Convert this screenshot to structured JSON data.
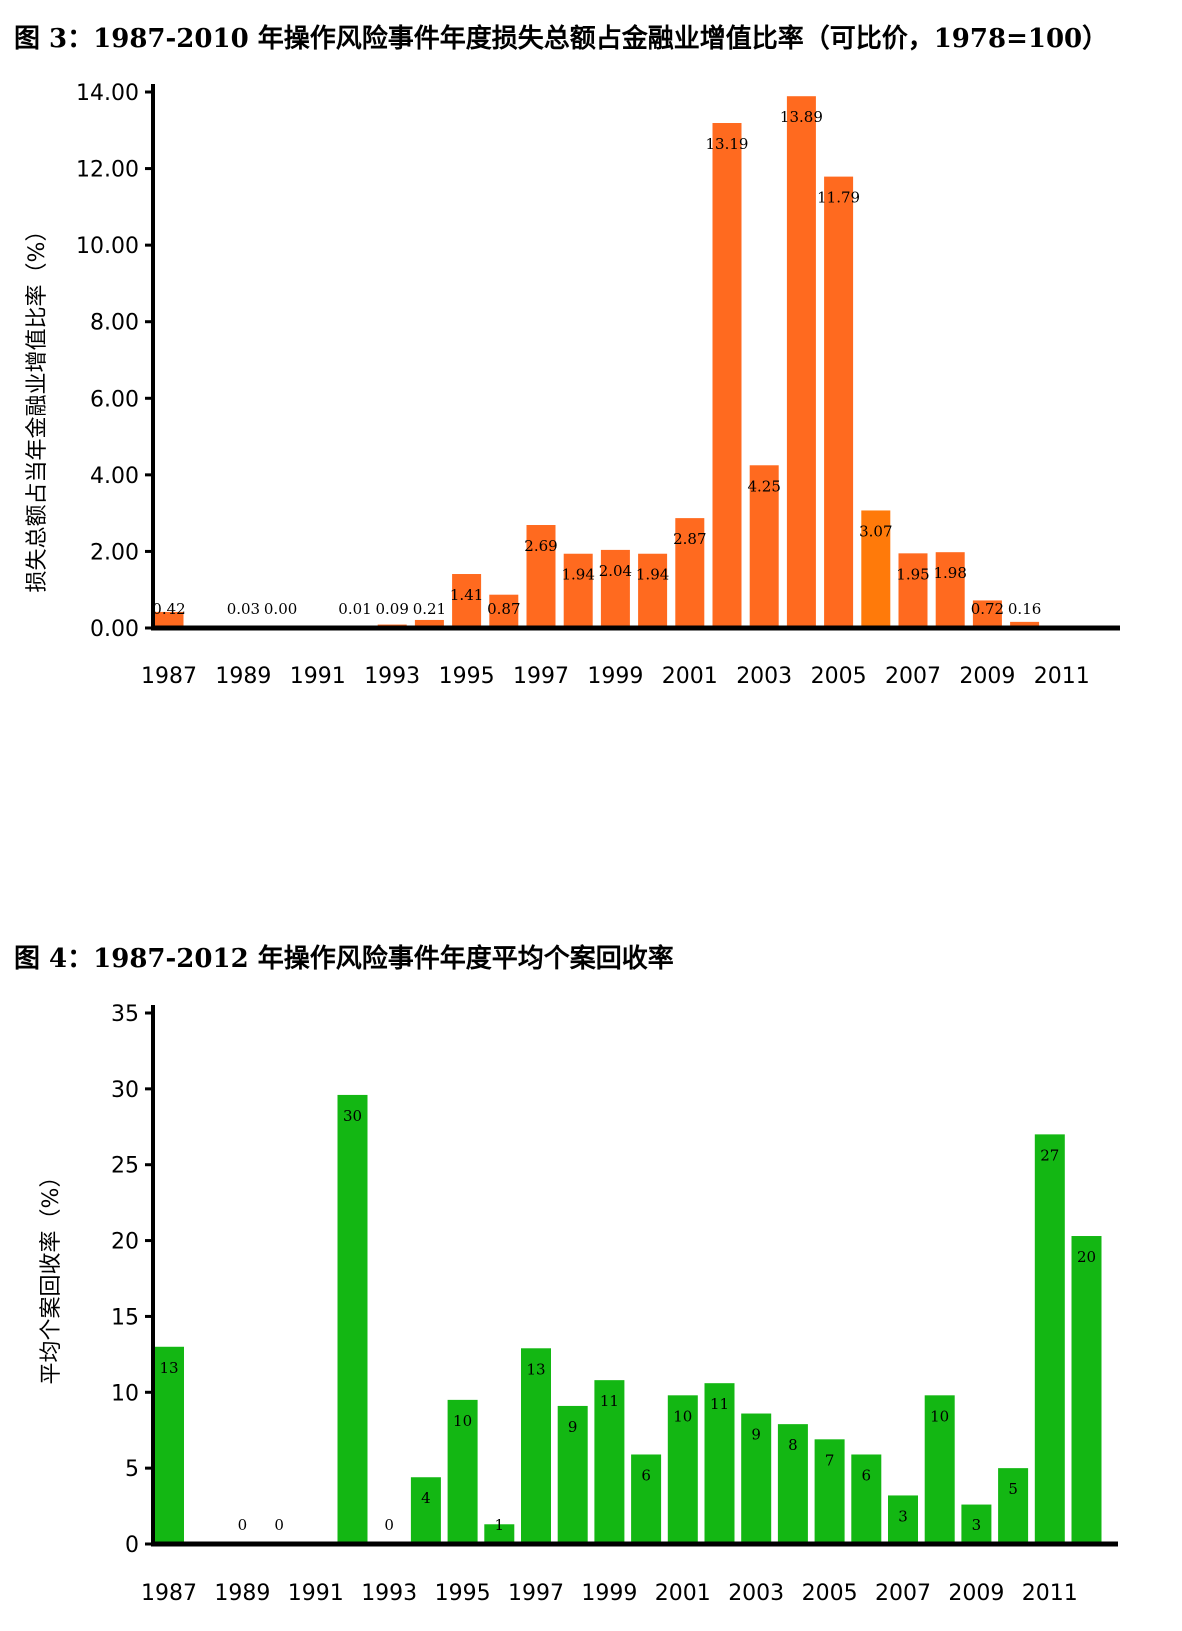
{
  "chart_data": [
    {
      "type": "bar",
      "title": "图 3：1987-2010 年操作风险事件年度损失总额占金融业增值比率（可比价，1978=100）",
      "ylabel": "损失总额占当年金融业增值比率（%）",
      "xlabel": "",
      "ylim": [
        0,
        14
      ],
      "yticks": [
        "0.00",
        "2.00",
        "4.00",
        "6.00",
        "8.00",
        "10.00",
        "12.00",
        "14.00"
      ],
      "ytick_values": [
        0,
        2,
        4,
        6,
        8,
        10,
        12,
        14
      ],
      "x": [
        1987,
        1988,
        1989,
        1990,
        1991,
        1992,
        1993,
        1994,
        1995,
        1996,
        1997,
        1998,
        1999,
        2000,
        2001,
        2002,
        2003,
        2004,
        2005,
        2006,
        2007,
        2008,
        2009,
        2010,
        2011
      ],
      "xtick_labels": [
        "1987",
        "1989",
        "1991",
        "1993",
        "1995",
        "1997",
        "1999",
        "2001",
        "2003",
        "2005",
        "2007",
        "2009",
        "2011"
      ],
      "values": [
        0.42,
        null,
        0.03,
        0.0,
        null,
        0.01,
        0.09,
        0.21,
        1.41,
        0.87,
        2.69,
        1.94,
        2.04,
        1.94,
        2.87,
        13.19,
        4.25,
        13.89,
        11.79,
        3.07,
        1.95,
        1.98,
        0.72,
        0.16,
        null
      ],
      "labels": [
        "0.42",
        "",
        "0.03",
        "0.00",
        "",
        "0.01",
        "0.09",
        "0.21",
        "1.41",
        "0.87",
        "2.69",
        "1.94",
        "2.04",
        "1.94",
        "2.87",
        "13.19",
        "4.25",
        "13.89",
        "11.79",
        "3.07",
        "1.95",
        "1.98",
        "0.72",
        "0.16",
        ""
      ],
      "color": "#FF6A1F",
      "highlight_color": "#FF7A0A",
      "grid": false
    },
    {
      "type": "bar",
      "title": "图 4：1987-2012 年操作风险事件年度平均个案回收率",
      "ylabel": "平均个案回收率（%）",
      "xlabel": "",
      "ylim": [
        0,
        35
      ],
      "yticks": [
        "0",
        "5",
        "10",
        "15",
        "20",
        "25",
        "30",
        "35"
      ],
      "ytick_values": [
        0,
        5,
        10,
        15,
        20,
        25,
        30,
        35
      ],
      "x": [
        1987,
        1988,
        1989,
        1990,
        1991,
        1992,
        1993,
        1994,
        1995,
        1996,
        1997,
        1998,
        1999,
        2000,
        2001,
        2002,
        2003,
        2004,
        2005,
        2006,
        2007,
        2008,
        2009,
        2010,
        2011,
        2012
      ],
      "xtick_labels": [
        "1987",
        "1989",
        "1991",
        "1993",
        "1995",
        "1997",
        "1999",
        "2001",
        "2003",
        "2005",
        "2007",
        "2009",
        "2011"
      ],
      "values": [
        13,
        null,
        0,
        0,
        null,
        29.6,
        0,
        4.4,
        9.5,
        1.3,
        12.9,
        9.1,
        10.8,
        5.9,
        9.8,
        10.6,
        8.6,
        7.9,
        6.9,
        5.9,
        3.2,
        9.8,
        2.6,
        5.0,
        27.0,
        20.3
      ],
      "labels": [
        "13",
        "",
        "0",
        "0",
        "",
        "30",
        "0",
        "4",
        "10",
        "1",
        "13",
        "9",
        "11",
        "6",
        "10",
        "11",
        "9",
        "8",
        "7",
        "6",
        "3",
        "10",
        "3",
        "5",
        "27",
        "20"
      ],
      "color": "#13B713",
      "grid": false
    }
  ]
}
